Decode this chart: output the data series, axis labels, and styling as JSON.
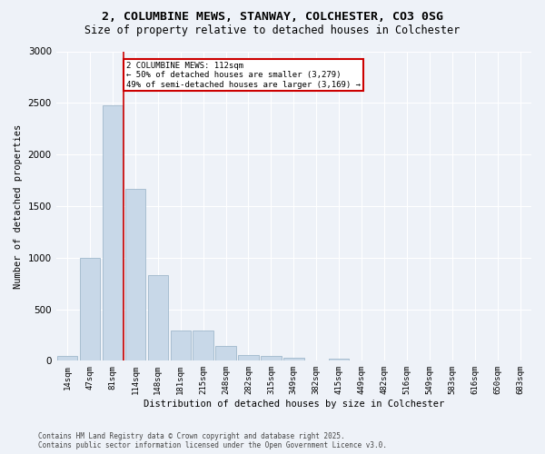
{
  "title_line1": "2, COLUMBINE MEWS, STANWAY, COLCHESTER, CO3 0SG",
  "title_line2": "Size of property relative to detached houses in Colchester",
  "xlabel": "Distribution of detached houses by size in Colchester",
  "ylabel": "Number of detached properties",
  "footer_line1": "Contains HM Land Registry data © Crown copyright and database right 2025.",
  "footer_line2": "Contains public sector information licensed under the Open Government Licence v3.0.",
  "categories": [
    "14sqm",
    "47sqm",
    "81sqm",
    "114sqm",
    "148sqm",
    "181sqm",
    "215sqm",
    "248sqm",
    "282sqm",
    "315sqm",
    "349sqm",
    "382sqm",
    "415sqm",
    "449sqm",
    "482sqm",
    "516sqm",
    "549sqm",
    "583sqm",
    "616sqm",
    "650sqm",
    "683sqm"
  ],
  "values": [
    50,
    1000,
    2480,
    1670,
    830,
    295,
    295,
    145,
    55,
    50,
    30,
    0,
    20,
    0,
    0,
    0,
    0,
    0,
    0,
    0,
    0
  ],
  "bar_color": "#c8d8e8",
  "bar_edge_color": "#a0b8cc",
  "vline_color": "#cc0000",
  "annotation_text": "2 COLUMBINE MEWS: 112sqm\n← 50% of detached houses are smaller (3,279)\n49% of semi-detached houses are larger (3,169) →",
  "annotation_box_color": "#cc0000",
  "annotation_bg": "white",
  "ylim": [
    0,
    3000
  ],
  "yticks": [
    0,
    500,
    1000,
    1500,
    2000,
    2500,
    3000
  ],
  "bg_color": "#eef2f8",
  "grid_color": "white",
  "title_fontsize": 9.5,
  "subtitle_fontsize": 8.5
}
